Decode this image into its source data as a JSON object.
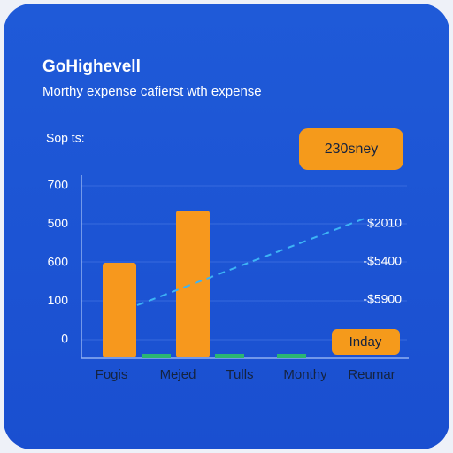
{
  "card": {
    "title": "GoHighevell",
    "subtitle": "Morthy expense cafierst wth expense",
    "section_label": "Sop ts:",
    "badge": "230sney",
    "button": "Inday"
  },
  "chart": {
    "left_labels": [
      "700",
      "500",
      "600",
      "100",
      "0"
    ],
    "right_labels": [
      "$2010",
      "-$5400",
      "-$5900"
    ],
    "categories": [
      "Fogis",
      "Mejed",
      "Tulls",
      "Monthy",
      "Reumar"
    ]
  }
}
